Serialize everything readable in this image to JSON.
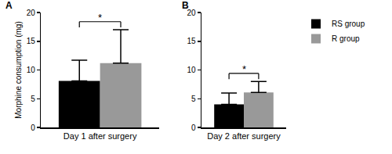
{
  "chart_data": [
    {
      "type": "bar",
      "title": "A",
      "ylabel": "Morphine consumption (mg)",
      "categories": [
        "Day 1 after surgery"
      ],
      "series": [
        {
          "name": "RS group",
          "color": "#000000",
          "values": [
            8.1
          ],
          "error": [
            3.6
          ]
        },
        {
          "name": "R group",
          "color": "#999999",
          "values": [
            11.2
          ],
          "error": [
            5.8
          ]
        }
      ],
      "ylim": [
        0,
        20
      ],
      "yticks": [
        0,
        5,
        10,
        15,
        20
      ],
      "grid": false,
      "annotations": [
        {
          "text": "*"
        }
      ]
    },
    {
      "type": "bar",
      "title": "B",
      "categories": [
        "Day 2 after surgery"
      ],
      "series": [
        {
          "name": "RS group",
          "color": "#000000",
          "values": [
            4.0
          ],
          "error": [
            2.0
          ]
        },
        {
          "name": "R group",
          "color": "#999999",
          "values": [
            6.1
          ],
          "error": [
            1.9
          ]
        }
      ],
      "ylim": [
        0,
        20
      ],
      "yticks": [
        0,
        5,
        10,
        15,
        20
      ],
      "grid": false,
      "legend": "upper right",
      "annotations": [
        {
          "text": "*"
        }
      ]
    }
  ]
}
